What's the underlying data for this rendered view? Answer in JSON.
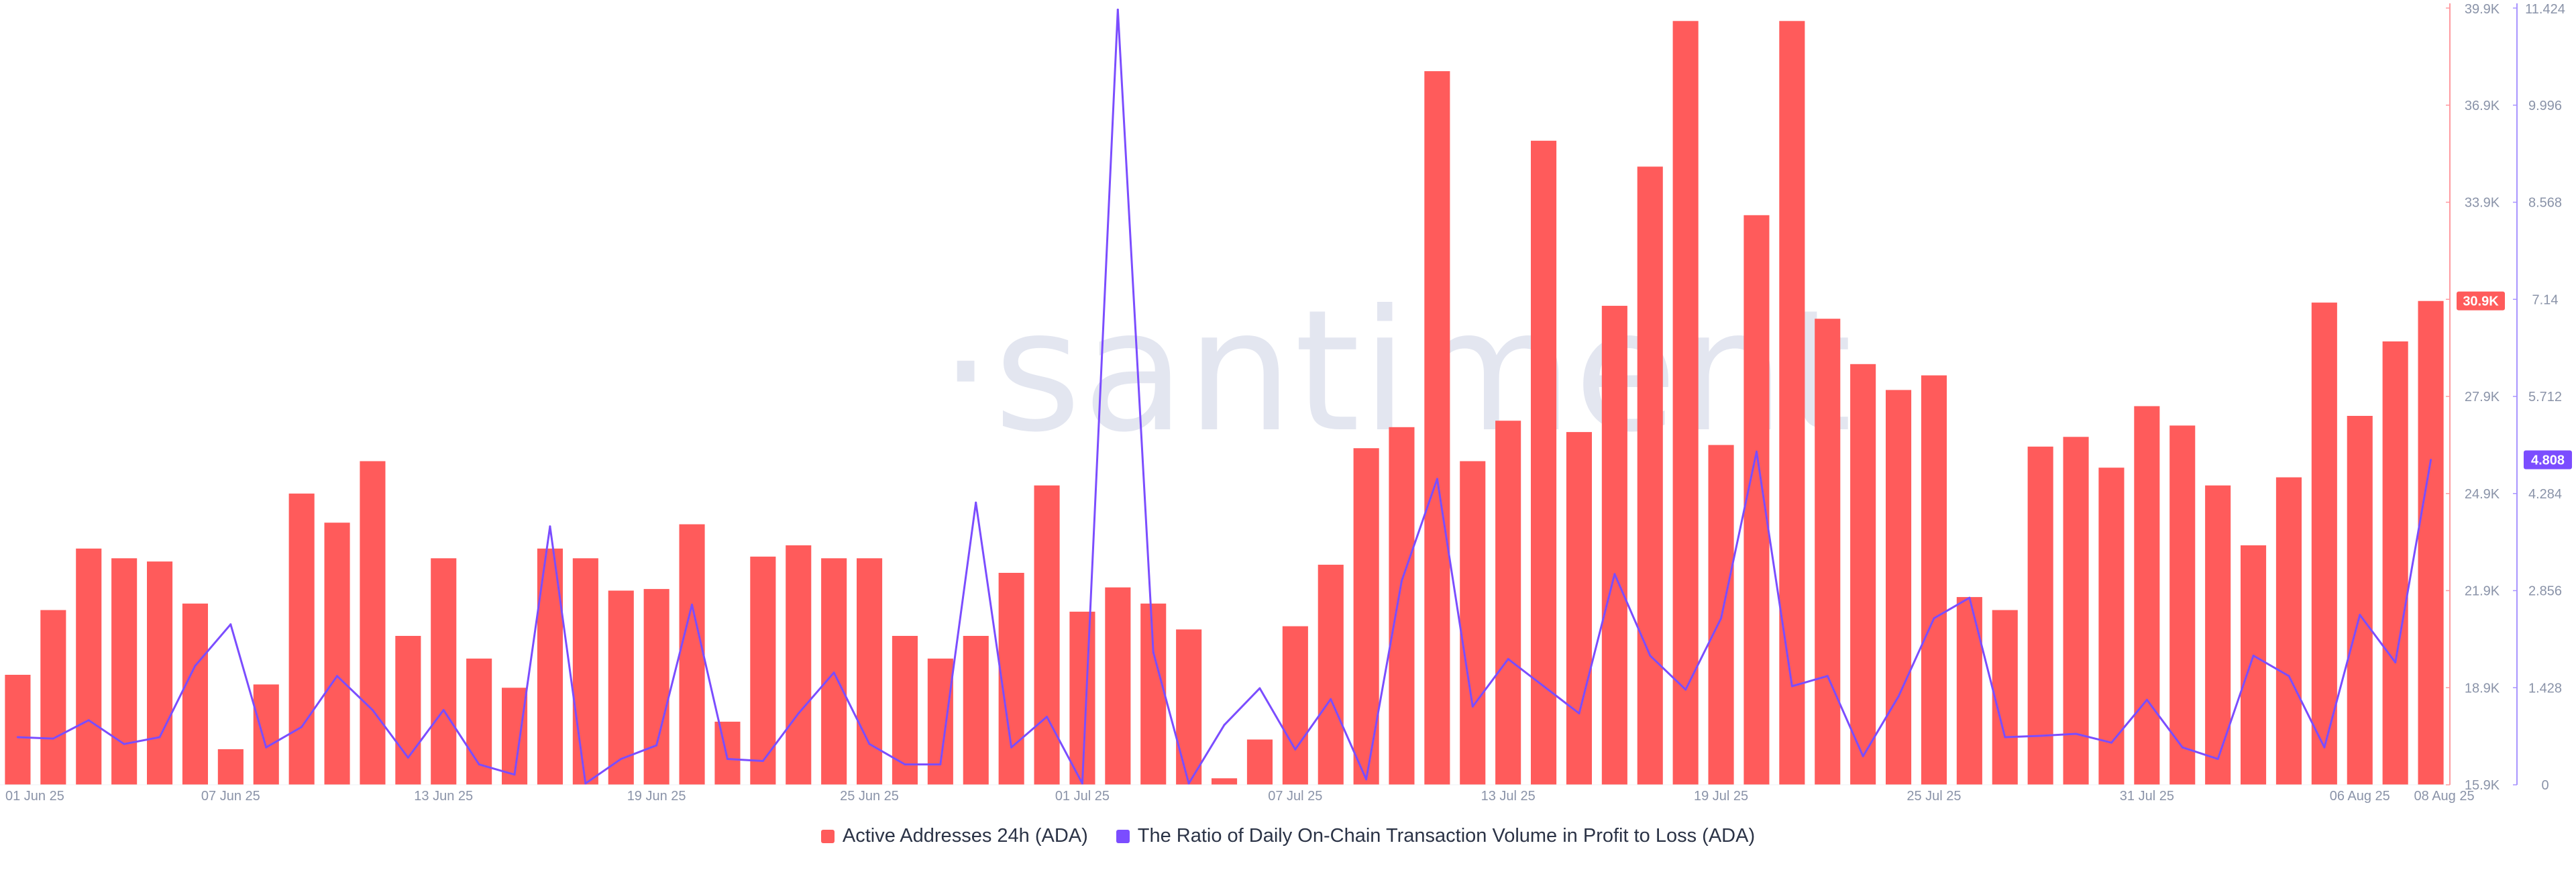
{
  "watermark": "·santiment",
  "legend": {
    "series_a_label": "Active Addresses 24h (ADA)",
    "series_b_label": "The Ratio of Daily On-Chain Transaction Volume in Profit to Loss (ADA)"
  },
  "colors": {
    "bars": "#ff5b5b",
    "line": "#7b4dff",
    "axis_left": "#ff9aa0",
    "axis_right": "#a995ff"
  },
  "badges": {
    "left_value": "30.9K",
    "right_value": "4.808"
  },
  "chart_data": {
    "type": "bar",
    "x_tick_labels": [
      "01 Jun 25",
      "07 Jun 25",
      "13 Jun 25",
      "19 Jun 25",
      "25 Jun 25",
      "01 Jul 25",
      "07 Jul 25",
      "13 Jul 25",
      "19 Jul 25",
      "25 Jul 25",
      "31 Jul 25",
      "06 Aug 25",
      "08 Aug 25"
    ],
    "left_axis": {
      "ticks": [
        "15.9K",
        "18.9K",
        "21.9K",
        "24.9K",
        "27.9K",
        "30.9K",
        "33.9K",
        "36.9K",
        "39.9K"
      ],
      "ylim": [
        15900,
        39900
      ]
    },
    "right_axis": {
      "ticks": [
        "0",
        "1.428",
        "2.856",
        "4.284",
        "5.712",
        "7.14",
        "8.568",
        "9.996",
        "11.424"
      ],
      "ylim": [
        0,
        11.424
      ]
    },
    "series": [
      {
        "name": "Active Addresses 24h (ADA)",
        "kind": "bar",
        "axis": "left",
        "values": [
          19300,
          21300,
          23200,
          22900,
          22800,
          21500,
          17000,
          19000,
          24900,
          24000,
          25900,
          20500,
          22900,
          19800,
          18900,
          23200,
          22900,
          21900,
          21950,
          23950,
          17850,
          22950,
          23300,
          22900,
          22900,
          20500,
          19800,
          20500,
          22450,
          25150,
          21250,
          22000,
          21500,
          20700,
          16100,
          17300,
          20800,
          22700,
          26300,
          26950,
          37950,
          25900,
          27150,
          35800,
          26800,
          30700,
          35000,
          39500,
          26400,
          33500,
          39500,
          30300,
          28900,
          28100,
          28550,
          21700,
          21300,
          26350,
          26650,
          25700,
          27600,
          27000,
          25150,
          23300,
          25400,
          30800,
          27300,
          29600,
          30850
        ]
      },
      {
        "name": "The Ratio of Daily On-Chain Transaction Volume in Profit to Loss (ADA)",
        "kind": "line",
        "axis": "right",
        "values": [
          0.7,
          0.68,
          0.95,
          0.6,
          0.7,
          1.75,
          2.36,
          0.55,
          0.85,
          1.6,
          1.1,
          0.4,
          1.1,
          0.3,
          0.15,
          3.8,
          0.02,
          0.38,
          0.58,
          2.65,
          0.38,
          0.35,
          1.05,
          1.65,
          0.6,
          0.3,
          0.3,
          4.15,
          0.55,
          1.0,
          0.02,
          11.4,
          1.95,
          0.02,
          0.88,
          1.42,
          0.52,
          1.26,
          0.08,
          3.0,
          4.5,
          1.15,
          1.85,
          1.45,
          1.05,
          3.1,
          1.9,
          1.4,
          2.45,
          4.9,
          1.45,
          1.6,
          0.42,
          1.3,
          2.45,
          2.75,
          0.7,
          0.72,
          0.75,
          0.62,
          1.25,
          0.55,
          0.38,
          1.9,
          1.6,
          0.55,
          2.5,
          1.8,
          4.78
        ]
      }
    ]
  }
}
